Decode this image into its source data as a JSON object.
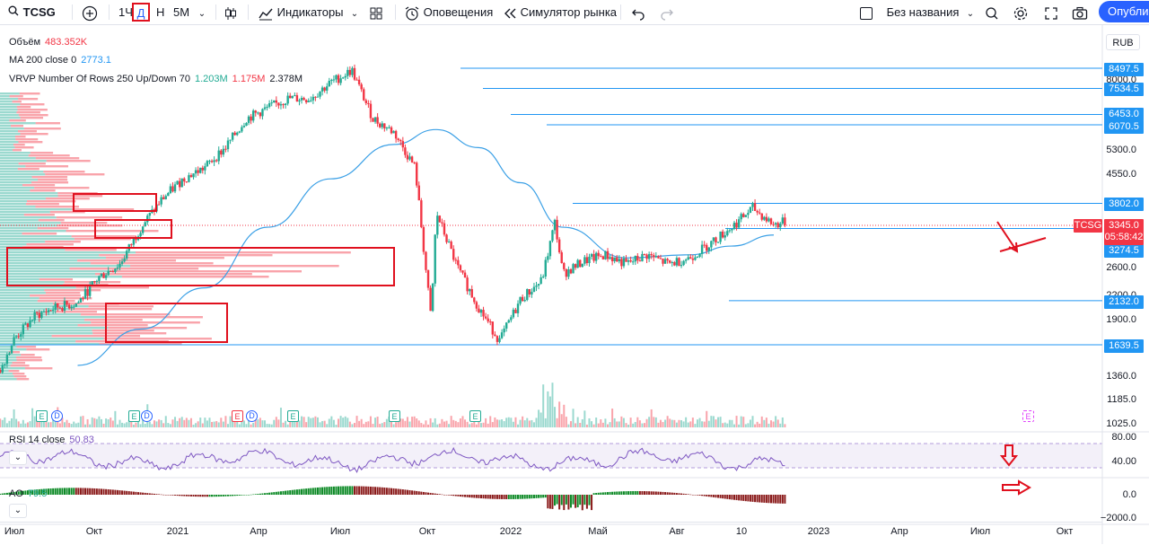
{
  "toolbar": {
    "symbol": "TCSG",
    "intervals": [
      "1Ч",
      "Д",
      "Н",
      "5М"
    ],
    "active_interval": "Д",
    "indicators_label": "Индикаторы",
    "alerts_label": "Оповещения",
    "replay_label": "Симулятор рынка",
    "layout_name": "Без названия",
    "publish_label": "Опубликовать"
  },
  "legend": {
    "volume_label": "Объём",
    "volume_value": "483.352K",
    "ma_label": "MA 200 close 0",
    "ma_value": "2773.1",
    "vrvp_label": "VRVP Number Of Rows 250 Up/Down 70",
    "vrvp_up": "1.203M",
    "vrvp_down": "1.175M",
    "vrvp_total": "2.378M"
  },
  "currency": "RUB",
  "price_axis": {
    "ticks": [
      "8000.0",
      "5300.0",
      "4550.0",
      "2600.0",
      "2200.0",
      "1900.0",
      "1360.0",
      "1185.0",
      "1025.0"
    ],
    "level_tags": [
      "8497.5",
      "7534.5",
      "6453.0",
      "6070.5",
      "3802.0",
      "3274.5",
      "2132.0",
      "1639.5"
    ],
    "last_price_symbol": "TCSG",
    "last_price": "3345.0",
    "countdown": "05:58:42"
  },
  "rsi": {
    "label": "RSI 14 close",
    "value": "50.83",
    "ticks": [
      "80.00",
      "40.00"
    ]
  },
  "ao": {
    "label": "AO",
    "value": "79.5",
    "ticks": [
      "0.0",
      "−2000.0"
    ]
  },
  "time_axis": [
    "Июл",
    "Окт",
    "2021",
    "Апр",
    "Июл",
    "Окт",
    "2022",
    "Май",
    "Авг",
    "10",
    "2023",
    "Апр",
    "Июл",
    "Окт"
  ],
  "events": {
    "earnings": "E",
    "dividend": "D"
  },
  "colors": {
    "up": "#22ab94",
    "down": "#f23645",
    "ma": "#3ba0e6",
    "level": "#2196f3",
    "rsi": "#7e57c2",
    "accent": "#2962ff",
    "annotation": "#e0101e"
  },
  "chart_data": {
    "type": "candlestick",
    "symbol": "TCSG",
    "x_range": [
      "2020-07",
      "2023-10"
    ],
    "y_scale": "log",
    "horizontal_levels": [
      8497.5,
      7534.5,
      6453.0,
      6070.5,
      3802.0,
      3274.5,
      2132.0,
      1639.5
    ],
    "last_price": 3345.0,
    "close_path": [
      [
        "2020-06",
        1300
      ],
      [
        "2020-07",
        1700
      ],
      [
        "2020-08",
        1950
      ],
      [
        "2020-09",
        2050
      ],
      [
        "2020-10",
        2100
      ],
      [
        "2020-11",
        2450
      ],
      [
        "2020-12",
        2650
      ],
      [
        "2021-01",
        3300
      ],
      [
        "2021-02",
        3900
      ],
      [
        "2021-03",
        4400
      ],
      [
        "2021-04",
        4700
      ],
      [
        "2021-05",
        5300
      ],
      [
        "2021-06",
        6300
      ],
      [
        "2021-07",
        6700
      ],
      [
        "2021-08",
        7100
      ],
      [
        "2021-09",
        7100
      ],
      [
        "2021-10",
        7800
      ],
      [
        "2021-11",
        8400
      ],
      [
        "2021-11-20",
        7000
      ],
      [
        "2021-12",
        6300
      ],
      [
        "2022-01",
        5800
      ],
      [
        "2022-02",
        4700
      ],
      [
        "2022-02-24",
        1900
      ],
      [
        "2022-03",
        3600
      ],
      [
        "2022-04",
        2600
      ],
      [
        "2022-05",
        2050
      ],
      [
        "2022-06",
        1680
      ],
      [
        "2022-07",
        2150
      ],
      [
        "2022-08",
        2400
      ],
      [
        "2022-08-20",
        3400
      ],
      [
        "2022-09",
        2500
      ],
      [
        "2022-10",
        2700
      ],
      [
        "2022-11",
        2800
      ],
      [
        "2022-12",
        2650
      ],
      [
        "2023-01",
        2800
      ],
      [
        "2023-02",
        2650
      ],
      [
        "2023-03",
        2750
      ],
      [
        "2023-04",
        3000
      ],
      [
        "2023-05",
        3300
      ],
      [
        "2023-06",
        3700
      ],
      [
        "2023-07",
        3350
      ],
      [
        "2023-07-20",
        3420
      ]
    ],
    "ma200_path": [
      [
        "2020-10",
        1450
      ],
      [
        "2021-01",
        1800
      ],
      [
        "2021-04",
        2300
      ],
      [
        "2021-07",
        3300
      ],
      [
        "2021-10",
        4400
      ],
      [
        "2022-01",
        5400
      ],
      [
        "2022-03",
        5900
      ],
      [
        "2022-05",
        5300
      ],
      [
        "2022-07",
        4300
      ],
      [
        "2022-09",
        3300
      ],
      [
        "2022-12",
        2750
      ],
      [
        "2023-03",
        2800
      ],
      [
        "2023-05",
        2950
      ],
      [
        "2023-07",
        3150
      ]
    ]
  }
}
